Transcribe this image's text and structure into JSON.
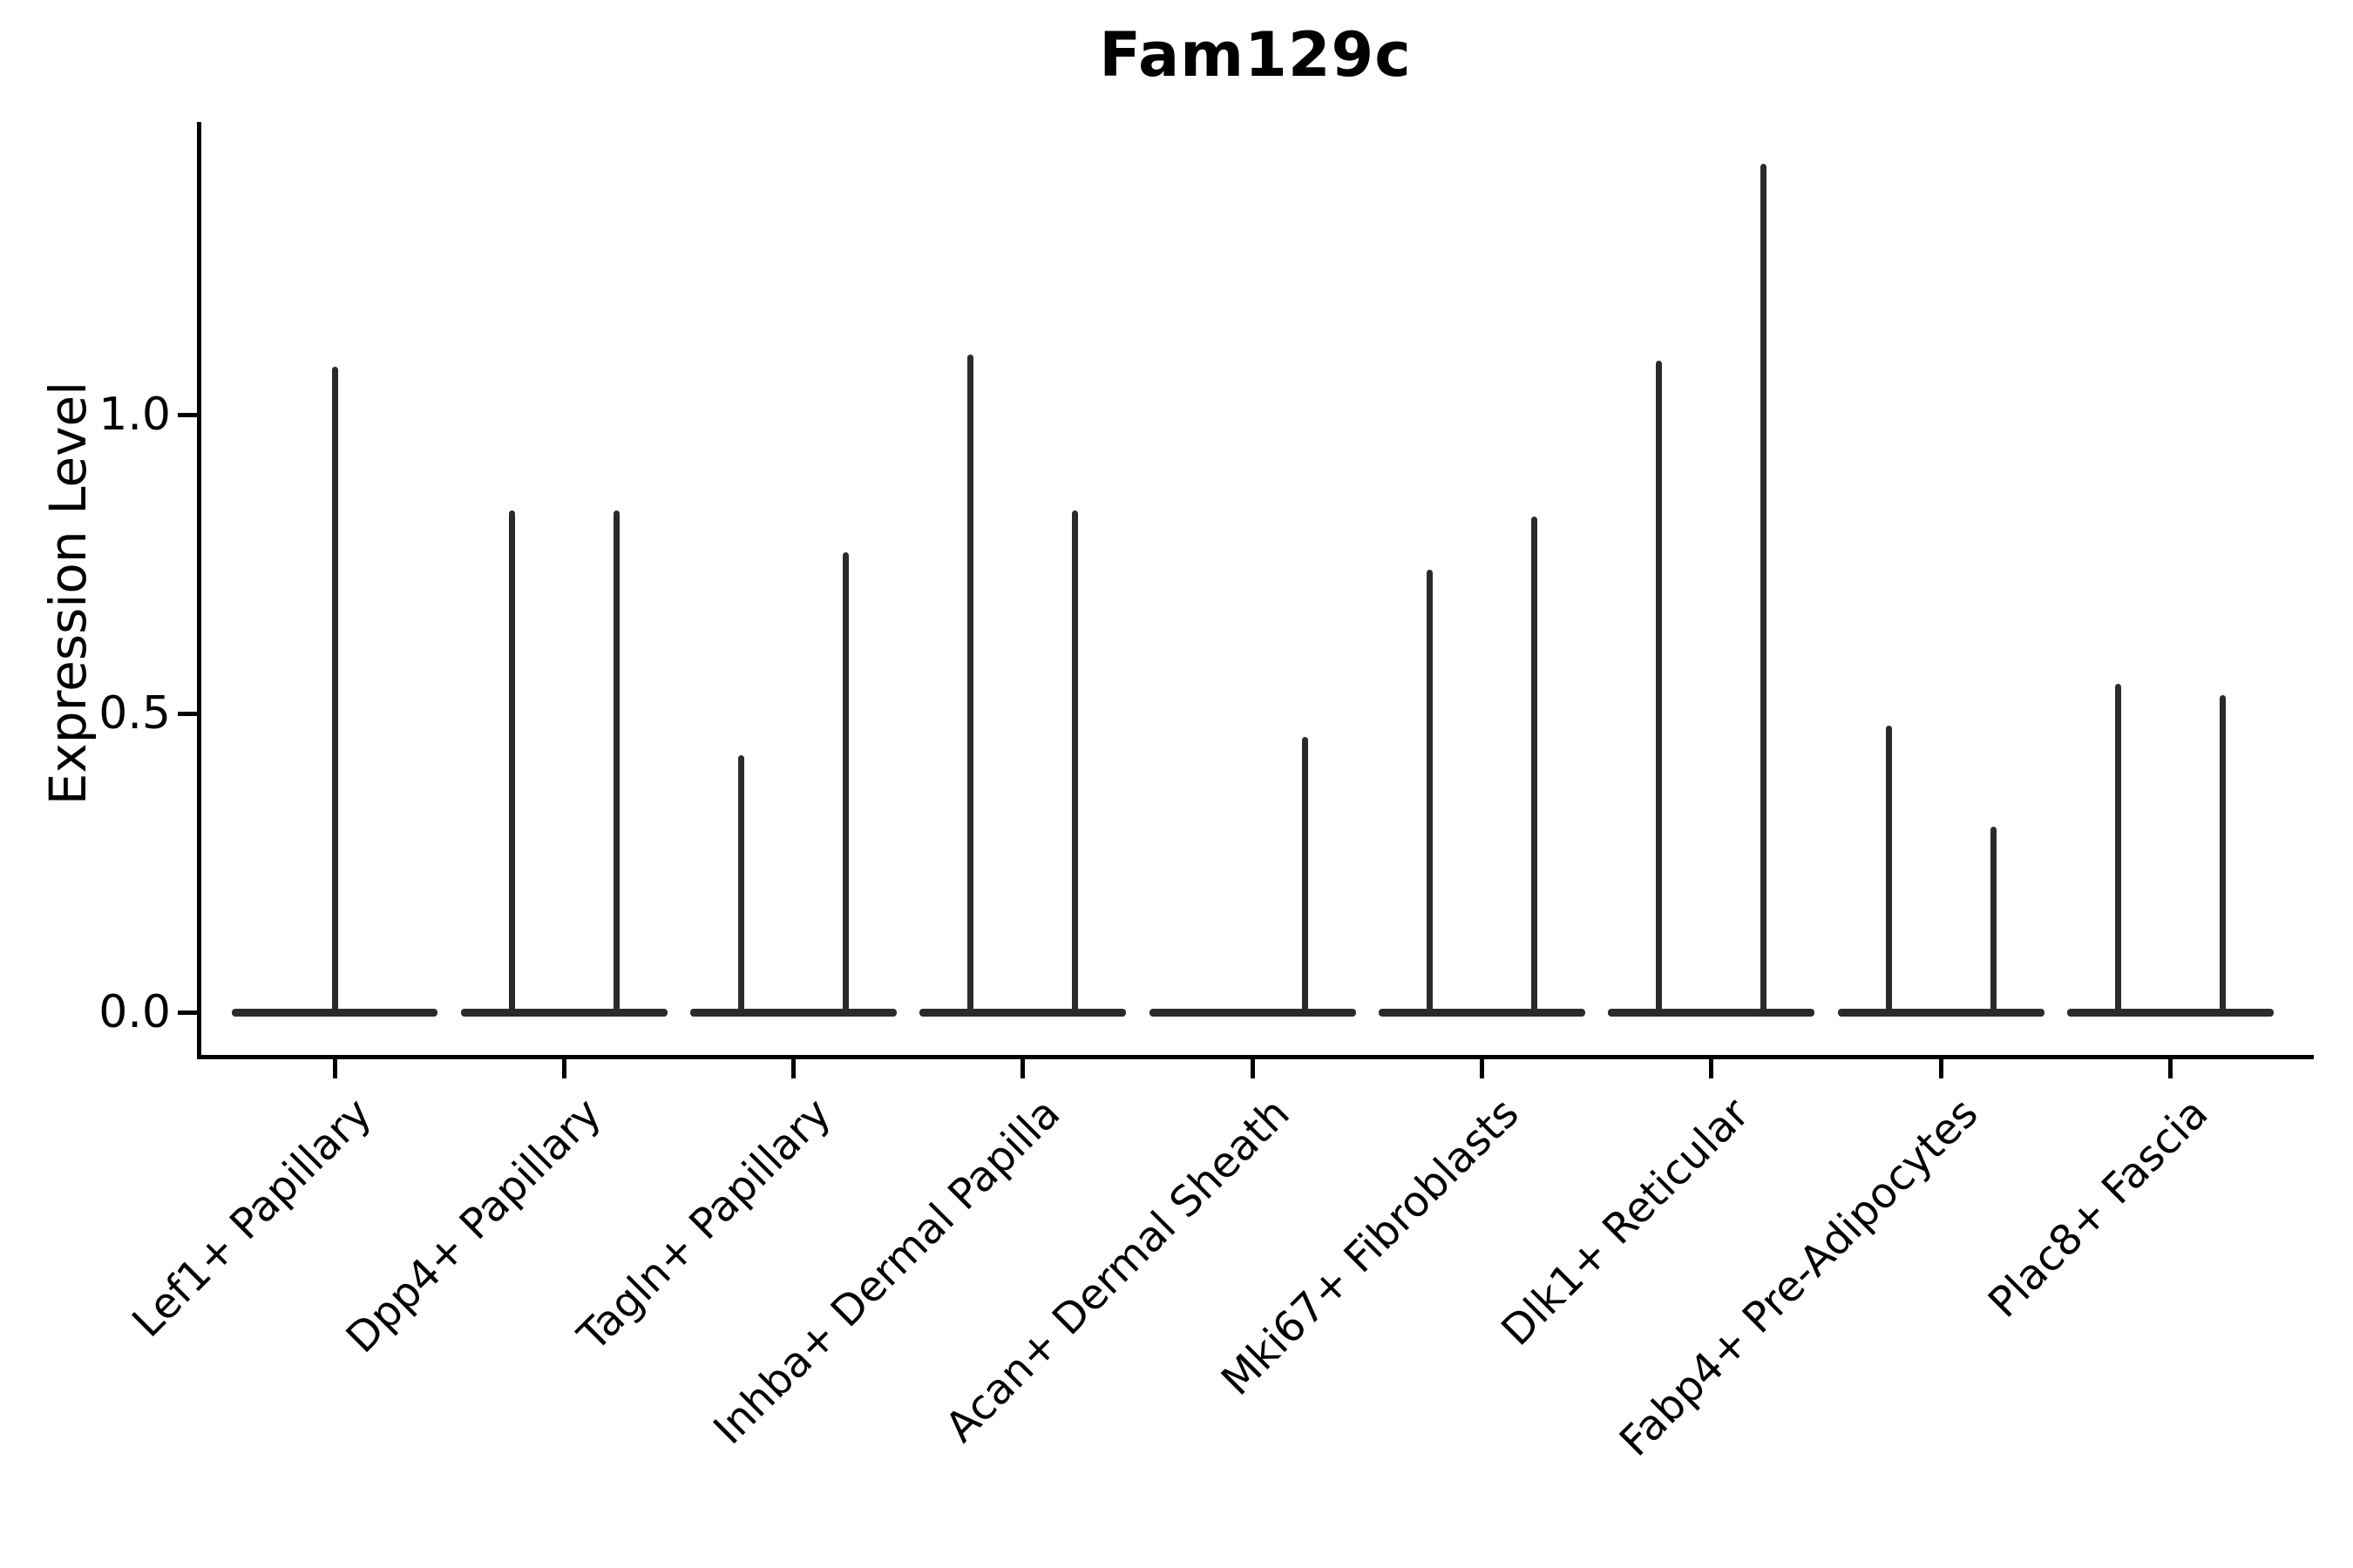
{
  "figure": {
    "title": "Fam129c",
    "background": "#ffffff"
  },
  "y_axis": {
    "label": "Expression Level",
    "tick_labels": [
      "0.0",
      "0.5",
      "1.0"
    ],
    "tick_values": [
      0.0,
      0.5,
      1.0
    ]
  },
  "x_axis": {
    "categories": [
      "Lef1+ Papillary",
      "Dpp4+ Papillary",
      "Tagln+ Papillary",
      "Inhba+ Dermal Papilla",
      "Acan+ Dermal Sheath",
      "Mki67+ Fibroblasts",
      "Dlk1+ Reticular",
      "Fabp4+ Pre-Adipocytes",
      "Plac8+ Fascia"
    ]
  },
  "style": {
    "axis_color": "#000000",
    "text_color": "#000000",
    "violin_color": "#2b2b2b"
  },
  "chart_data": {
    "type": "violin",
    "title": "Fam129c",
    "xlabel": "",
    "ylabel": "Expression Level",
    "yticks": [
      0.0,
      0.5,
      1.0
    ],
    "ylim": [
      -0.07,
      1.49
    ],
    "grid": false,
    "legend_position": "none",
    "body_halfwidth_fraction": 0.45,
    "note": "Collapsed violins: flat body at 0 expression with thin spikes reaching each group's max expression; two dodged groups per category where two spikes drawn.",
    "violins": [
      {
        "category": "Lef1+ Papillary",
        "spikes": [
          {
            "pos": 0.0,
            "value": 1.08
          }
        ]
      },
      {
        "category": "Dpp4+ Papillary",
        "spikes": [
          {
            "pos": -0.228,
            "value": 0.84
          },
          {
            "pos": 0.228,
            "value": 0.84
          }
        ]
      },
      {
        "category": "Tagln+ Papillary",
        "spikes": [
          {
            "pos": -0.228,
            "value": 0.43
          },
          {
            "pos": 0.228,
            "value": 0.77
          }
        ]
      },
      {
        "category": "Inhba+ Dermal Papilla",
        "spikes": [
          {
            "pos": -0.228,
            "value": 1.1
          },
          {
            "pos": 0.228,
            "value": 0.84
          }
        ]
      },
      {
        "category": "Acan+ Dermal Sheath",
        "spikes": [
          {
            "pos": 0.228,
            "value": 0.46
          }
        ]
      },
      {
        "category": "Mki67+ Fibroblasts",
        "spikes": [
          {
            "pos": -0.228,
            "value": 0.74
          },
          {
            "pos": 0.228,
            "value": 0.83
          }
        ]
      },
      {
        "category": "Dlk1+ Reticular",
        "spikes": [
          {
            "pos": -0.228,
            "value": 1.09
          },
          {
            "pos": 0.228,
            "value": 1.42
          }
        ]
      },
      {
        "category": "Fabp4+ Pre-Adipocytes",
        "spikes": [
          {
            "pos": -0.228,
            "value": 0.48
          },
          {
            "pos": 0.228,
            "value": 0.31
          }
        ]
      },
      {
        "category": "Plac8+ Fascia",
        "spikes": [
          {
            "pos": -0.228,
            "value": 0.55
          },
          {
            "pos": 0.228,
            "value": 0.53
          }
        ]
      }
    ]
  }
}
